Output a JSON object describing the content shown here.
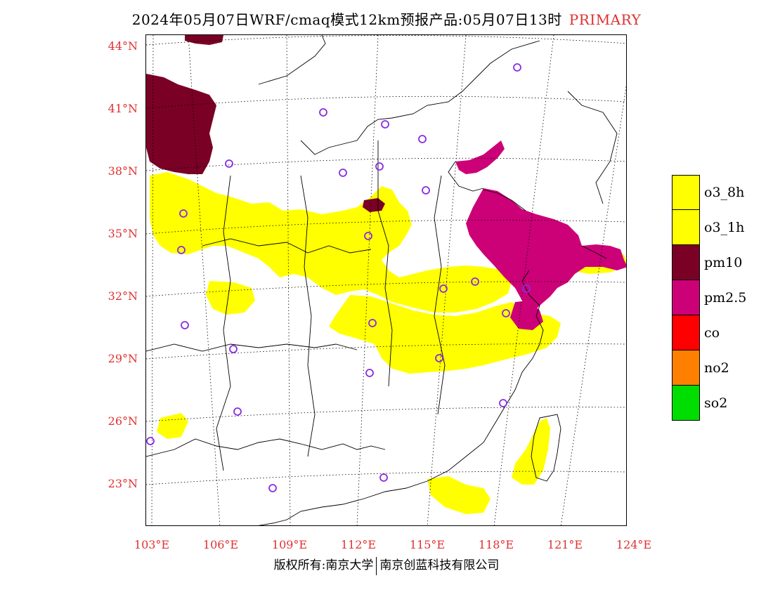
{
  "title": {
    "text": "2024年05月07日WRF/cmaq模式12km预报产品:05月07日13时",
    "tag": "PRIMARY"
  },
  "map": {
    "lat_labels": [
      "44°N",
      "41°N",
      "38°N",
      "35°N",
      "32°N",
      "29°N",
      "26°N",
      "23°N"
    ],
    "lon_labels": [
      "103°E",
      "106°E",
      "109°E",
      "112°E",
      "115°E",
      "118°E",
      "121°E",
      "124°E"
    ],
    "colors": {
      "o3_8h": "#ffff00",
      "o3_1h": "#ffff00",
      "pm10": "#7a0026",
      "pm25": "#cc0077",
      "station": "#8a2be2",
      "axis_label": "#e03030"
    }
  },
  "legend": {
    "items": [
      {
        "label": "o3_8h",
        "color": "#ffff00"
      },
      {
        "label": "o3_1h",
        "color": "#ffff00"
      },
      {
        "label": "pm10",
        "color": "#7a0026"
      },
      {
        "label": "pm2.5",
        "color": "#cc0077"
      },
      {
        "label": "co",
        "color": "#ff0000"
      },
      {
        "label": "no2",
        "color": "#ff8000"
      },
      {
        "label": "so2",
        "color": "#00dd00"
      }
    ]
  },
  "footer": {
    "left": "版权所有:南京大学",
    "right": "南京创蓝科技有限公司"
  }
}
